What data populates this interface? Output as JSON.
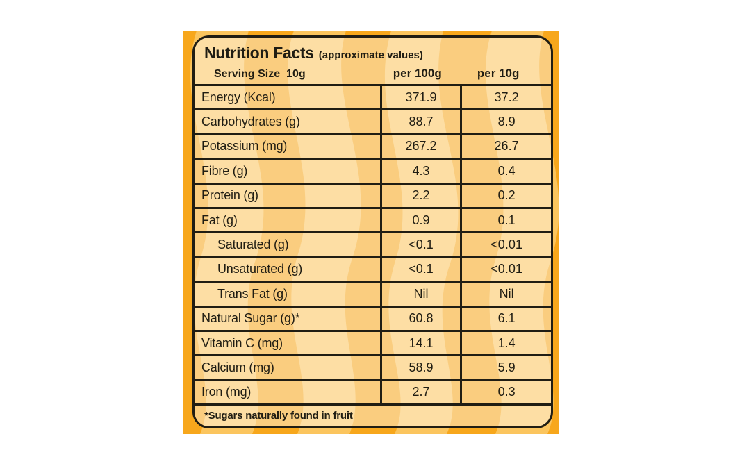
{
  "colors": {
    "canvas": "#ffffff",
    "background_orange": "#f7a71c",
    "background_wave": "#fbc55e",
    "ink": "#201d13"
  },
  "label": {
    "title": "Nutrition Facts",
    "subtitle": "(approximate values)",
    "serving_size": "Serving Size  10g",
    "columns": {
      "per100": "per 100g",
      "per10": "per 10g"
    },
    "rows": [
      {
        "name": "Energy (Kcal)",
        "per100": "371.9",
        "per10": "37.2",
        "indent": false
      },
      {
        "name": "Carbohydrates (g)",
        "per100": "88.7",
        "per10": "8.9",
        "indent": false
      },
      {
        "name": "Potassium (mg)",
        "per100": "267.2",
        "per10": "26.7",
        "indent": false
      },
      {
        "name": "Fibre (g)",
        "per100": "4.3",
        "per10": "0.4",
        "indent": false
      },
      {
        "name": "Protein (g)",
        "per100": "2.2",
        "per10": "0.2",
        "indent": false
      },
      {
        "name": "Fat (g)",
        "per100": "0.9",
        "per10": "0.1",
        "indent": false
      },
      {
        "name": "Saturated (g)",
        "per100": "<0.1",
        "per10": "<0.01",
        "indent": true
      },
      {
        "name": "Unsaturated (g)",
        "per100": "<0.1",
        "per10": "<0.01",
        "indent": true
      },
      {
        "name": "Trans Fat (g)",
        "per100": "Nil",
        "per10": "Nil",
        "indent": true
      },
      {
        "name": "Natural Sugar (g)*",
        "per100": "60.8",
        "per10": "6.1",
        "indent": false
      },
      {
        "name": "Vitamin C (mg)",
        "per100": "14.1",
        "per10": "1.4",
        "indent": false
      },
      {
        "name": "Calcium (mg)",
        "per100": "58.9",
        "per10": "5.9",
        "indent": false
      },
      {
        "name": "Iron (mg)",
        "per100": "2.7",
        "per10": "0.3",
        "indent": false
      }
    ],
    "footnote": "*Sugars naturally found in fruit"
  }
}
